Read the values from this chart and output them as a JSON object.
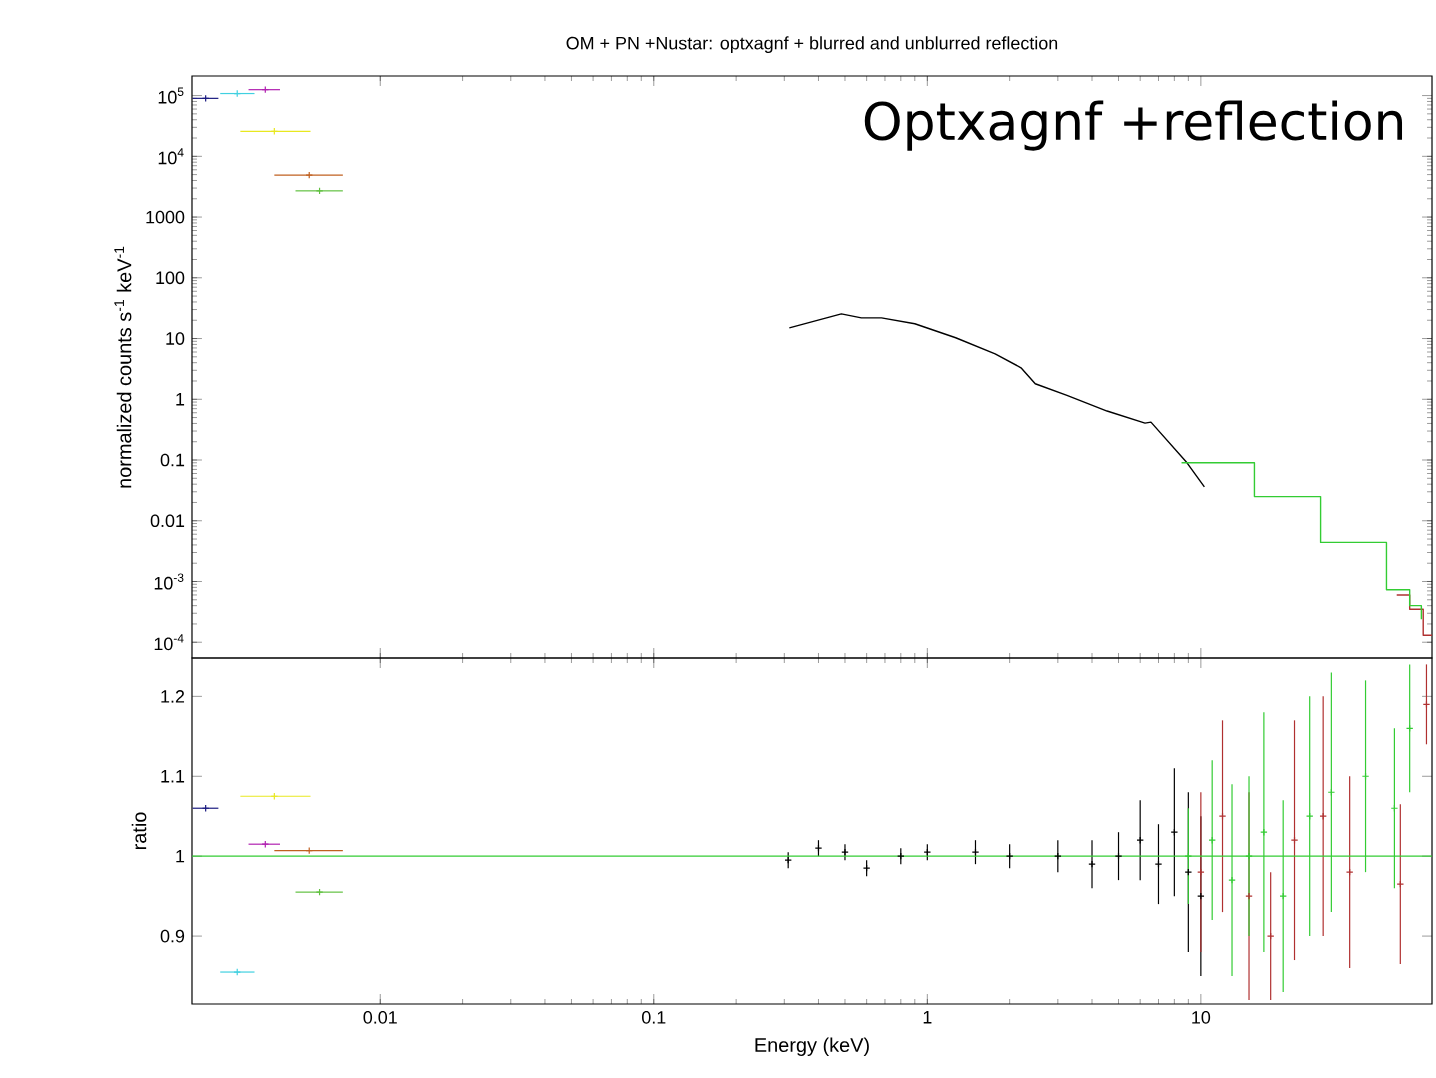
{
  "chart_data": [
    {
      "type": "line",
      "title": "OM + PN +Nustar:  optxagnf + blurred and unblurred reflection",
      "ylabel": "normalized counts s$^{-1}$ keV$^{-1}$",
      "annotations": [
        "Optxagnf +reflection"
      ],
      "log": "xy",
      "tick_labels": "y",
      "marker": "cross",
      "xlim": [
        0.00205,
        70
      ],
      "ylim": [
        5.5e-05,
        210000
      ],
      "xticks": [
        0.01,
        0.1,
        1,
        10
      ],
      "yticks": [
        {
          "value": 0.0001,
          "label": "10$^{-4}$"
        },
        {
          "value": 0.001,
          "label": "10$^{-3}$"
        },
        0.01,
        0.1,
        1,
        10,
        100,
        1000,
        {
          "value": 10000,
          "label": "10$^{4}$"
        },
        {
          "value": 100000,
          "label": "10$^{5}$"
        }
      ],
      "series": [
        {
          "type": "scatter",
          "color": "#1a1a80",
          "x": [
            0.0023
          ],
          "values": [
            90000
          ],
          "xerrors": [
            [
              0.00206,
              0.00256
            ]
          ]
        },
        {
          "type": "scatter",
          "color": "#40d0e0",
          "x": [
            0.003
          ],
          "values": [
            108000
          ],
          "xerrors": [
            [
              0.0026,
              0.00347
            ]
          ]
        },
        {
          "type": "scatter",
          "color": "#b020b0",
          "x": [
            0.0038
          ],
          "values": [
            125000
          ],
          "xerrors": [
            [
              0.0033,
              0.0043
            ]
          ]
        },
        {
          "type": "scatter",
          "color": "#e8e820",
          "x": [
            0.0041
          ],
          "values": [
            25800
          ],
          "xerrors": [
            [
              0.00308,
              0.00556
            ]
          ]
        },
        {
          "type": "scatter",
          "color": "#c06020",
          "x": [
            0.0055
          ],
          "values": [
            4900
          ],
          "xerrors": [
            [
              0.0041,
              0.0073
            ]
          ]
        },
        {
          "type": "scatter",
          "color": "#60c040",
          "x": [
            0.006
          ],
          "values": [
            2700
          ],
          "xerrors": [
            [
              0.0049,
              0.0073
            ]
          ]
        },
        {
          "type": "line",
          "marker": "none",
          "color": "#000000",
          "x": [
            0.313,
            0.485,
            0.574,
            0.68,
            0.9,
            1.27,
            1.77,
            2.2,
            2.48,
            3.24,
            4.54,
            6.25,
            6.57,
            8.9,
            10.3
          ],
          "values": [
            15,
            25.4,
            21.9,
            21.9,
            17.5,
            10.3,
            5.6,
            3.3,
            1.8,
            1.16,
            0.64,
            0.405,
            0.42,
            0.09,
            0.036
          ]
        },
        {
          "type": "step",
          "marker": "none",
          "color": "#b03030",
          "x": [
            52,
            58,
            65,
            70
          ],
          "values": [
            0.0006,
            0.00035,
            0.00013,
            0.00013
          ]
        },
        {
          "type": "step",
          "marker": "none",
          "color": "#33cc33",
          "x": [
            8.5,
            15.7,
            27.4,
            47.7,
            58,
            64
          ],
          "values": [
            0.09,
            0.025,
            0.0044,
            0.00073,
            0.0004,
            0.00024
          ]
        }
      ]
    },
    {
      "type": "scatter",
      "xlabel": "Energy (keV)",
      "ylabel": "ratio",
      "log": "x",
      "marker": "cross",
      "xlim": [
        0.00205,
        70
      ],
      "ylim": [
        0.815,
        1.248
      ],
      "xticks": [
        0.01,
        0.1,
        1,
        10
      ],
      "yticks": [
        0.9,
        1,
        1.1,
        1.2
      ],
      "ref_lines": [
        {
          "axis": "y",
          "value": 1,
          "color": "#33cc33"
        }
      ],
      "series": [
        {
          "color": "#1a1a80",
          "x": [
            0.0023
          ],
          "values": [
            1.06
          ],
          "xerrors": [
            [
              0.00206,
              0.00256
            ]
          ]
        },
        {
          "color": "#40d0e0",
          "x": [
            0.003
          ],
          "values": [
            0.855
          ],
          "xerrors": [
            [
              0.0026,
              0.00347
            ]
          ]
        },
        {
          "color": "#b020b0",
          "x": [
            0.0038
          ],
          "values": [
            1.015
          ],
          "xerrors": [
            [
              0.0033,
              0.0043
            ]
          ]
        },
        {
          "color": "#e8e820",
          "x": [
            0.0041
          ],
          "values": [
            1.075
          ],
          "xerrors": [
            [
              0.00308,
              0.00556
            ]
          ]
        },
        {
          "color": "#c06020",
          "x": [
            0.0055
          ],
          "values": [
            1.007
          ],
          "xerrors": [
            [
              0.0041,
              0.0073
            ]
          ]
        },
        {
          "color": "#60c040",
          "x": [
            0.006
          ],
          "values": [
            0.955
          ],
          "xerrors": [
            [
              0.0049,
              0.0073
            ]
          ]
        },
        {
          "color": "#000000",
          "x": [
            0.31,
            0.4,
            0.5,
            0.6,
            0.8,
            1,
            1.5,
            2,
            3,
            4,
            5,
            6,
            7,
            8,
            9,
            10
          ],
          "values": [
            0.995,
            1.01,
            1.005,
            0.985,
            1,
            1.005,
            1.005,
            1,
            1,
            0.99,
            1,
            1.02,
            0.99,
            1.03,
            0.98,
            0.95
          ],
          "errors": [
            0.01,
            0.01,
            0.01,
            0.01,
            0.01,
            0.01,
            0.015,
            0.015,
            0.02,
            0.03,
            0.03,
            0.05,
            0.05,
            0.08,
            0.1,
            0.1
          ]
        },
        {
          "color": "#b03030",
          "x": [
            10,
            12,
            15,
            18,
            22,
            28,
            35,
            53.6,
            66.8
          ],
          "values": [
            0.98,
            1.05,
            0.95,
            0.9,
            1.02,
            1.05,
            0.98,
            0.965,
            1.19
          ],
          "errors": [
            0.1,
            0.12,
            0.13,
            0.08,
            0.15,
            0.15,
            0.12,
            0.1,
            0.05
          ]
        },
        {
          "color": "#33cc33",
          "x": [
            9,
            11,
            13,
            15,
            17,
            20,
            25,
            30,
            40,
            51,
            58
          ],
          "values": [
            1,
            1.02,
            0.97,
            1,
            1.03,
            0.95,
            1.05,
            1.08,
            1.1,
            1.06,
            1.16
          ],
          "errors": [
            0.06,
            0.1,
            0.12,
            0.1,
            0.15,
            0.12,
            0.15,
            0.15,
            0.12,
            0.1,
            0.08
          ]
        }
      ]
    }
  ]
}
